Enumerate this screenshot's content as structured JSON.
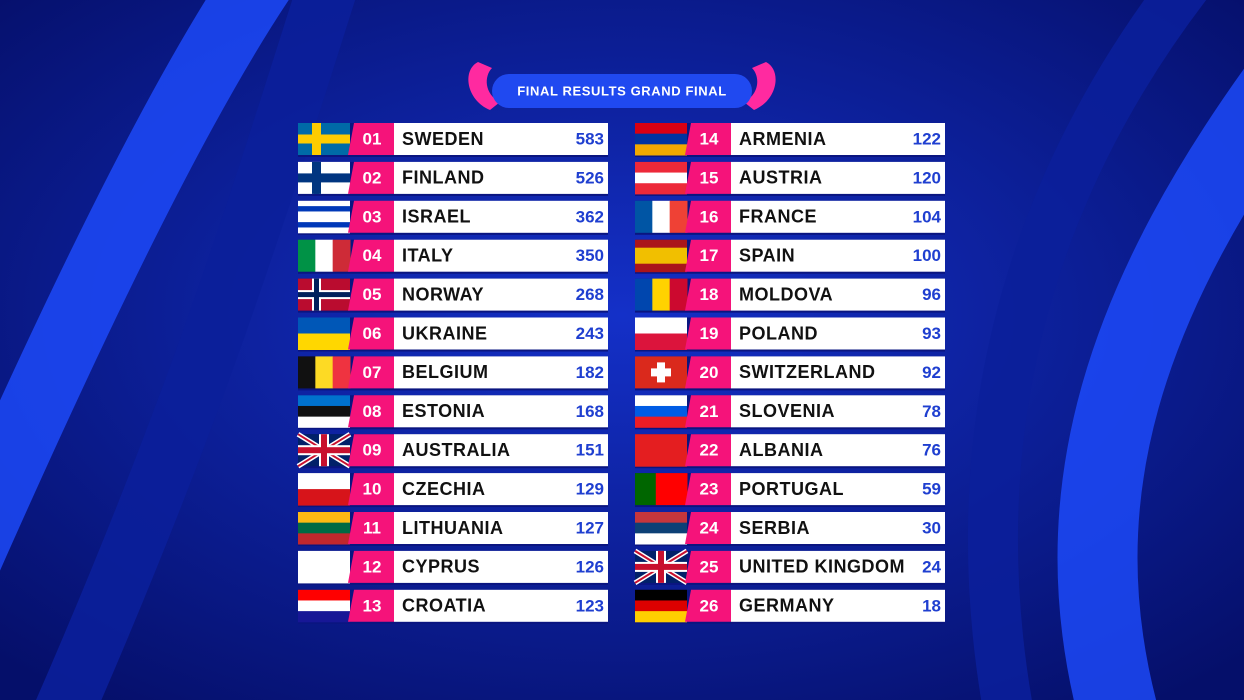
{
  "header": {
    "title": "FINAL RESULTS GRAND FINAL"
  },
  "results": [
    {
      "rank": "01",
      "country": "SWEDEN",
      "points": 583
    },
    {
      "rank": "02",
      "country": "FINLAND",
      "points": 526
    },
    {
      "rank": "03",
      "country": "ISRAEL",
      "points": 362
    },
    {
      "rank": "04",
      "country": "ITALY",
      "points": 350
    },
    {
      "rank": "05",
      "country": "NORWAY",
      "points": 268
    },
    {
      "rank": "06",
      "country": "UKRAINE",
      "points": 243
    },
    {
      "rank": "07",
      "country": "BELGIUM",
      "points": 182
    },
    {
      "rank": "08",
      "country": "ESTONIA",
      "points": 168
    },
    {
      "rank": "09",
      "country": "AUSTRALIA",
      "points": 151
    },
    {
      "rank": "10",
      "country": "CZECHIA",
      "points": 129
    },
    {
      "rank": "11",
      "country": "LITHUANIA",
      "points": 127
    },
    {
      "rank": "12",
      "country": "CYPRUS",
      "points": 126
    },
    {
      "rank": "13",
      "country": "CROATIA",
      "points": 123
    },
    {
      "rank": "14",
      "country": "ARMENIA",
      "points": 122
    },
    {
      "rank": "15",
      "country": "AUSTRIA",
      "points": 120
    },
    {
      "rank": "16",
      "country": "FRANCE",
      "points": 104
    },
    {
      "rank": "17",
      "country": "SPAIN",
      "points": 100
    },
    {
      "rank": "18",
      "country": "MOLDOVA",
      "points": 96
    },
    {
      "rank": "19",
      "country": "POLAND",
      "points": 93
    },
    {
      "rank": "20",
      "country": "SWITZERLAND",
      "points": 92
    },
    {
      "rank": "21",
      "country": "SLOVENIA",
      "points": 78
    },
    {
      "rank": "22",
      "country": "ALBANIA",
      "points": 76
    },
    {
      "rank": "23",
      "country": "PORTUGAL",
      "points": 59
    },
    {
      "rank": "24",
      "country": "SERBIA",
      "points": 30
    },
    {
      "rank": "25",
      "country": "UNITED KINGDOM",
      "points": 24
    },
    {
      "rank": "26",
      "country": "GERMANY",
      "points": 18
    }
  ]
}
